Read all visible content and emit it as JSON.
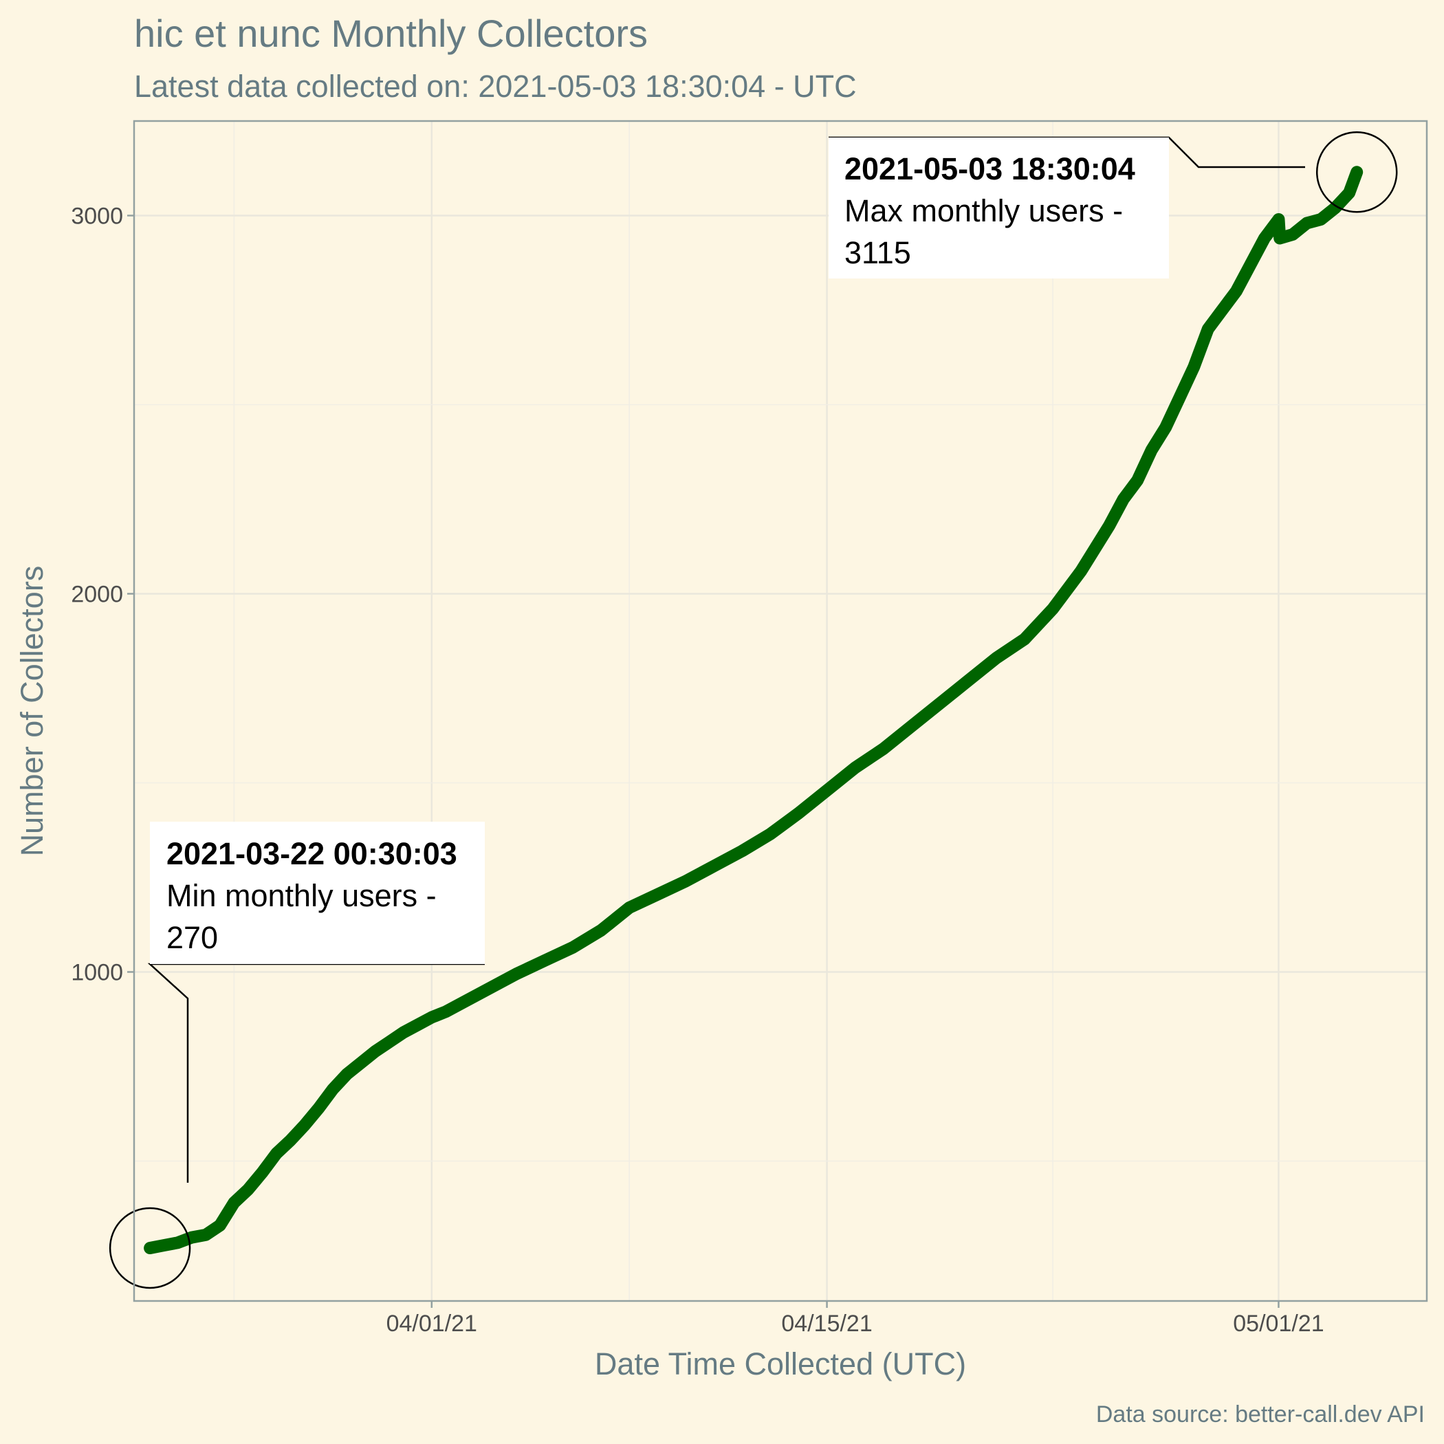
{
  "chart_data": {
    "type": "line",
    "title": "hic et nunc Monthly Collectors",
    "subtitle": "Latest data collected on: 2021-05-03 18:30:04  - UTC",
    "xlabel": "Date Time Collected (UTC)",
    "ylabel": "Number of Collectors",
    "caption": "Data source: better-call.dev API",
    "x_ticks": [
      {
        "date": "2021-04-01",
        "label": "04/01/21"
      },
      {
        "date": "2021-04-15",
        "label": "04/15/21"
      },
      {
        "date": "2021-05-01",
        "label": "05/01/21"
      }
    ],
    "y_ticks": [
      1000,
      2000,
      3000
    ],
    "xlim": [
      "2021-03-21 11:00",
      "2021-05-06 06:00"
    ],
    "ylim": [
      130,
      3250
    ],
    "grid": true,
    "colors": {
      "line": "#006400",
      "background": "#FDF6E3",
      "panel_border": "#93A1A1"
    },
    "series": [
      {
        "x": [
          "2021-03-22 00:30",
          "2021-03-22 12:00",
          "2021-03-23 00:00",
          "2021-03-23 12:00",
          "2021-03-24 00:00",
          "2021-03-24 12:00",
          "2021-03-25 00:00",
          "2021-03-25 12:00",
          "2021-03-26 00:00",
          "2021-03-26 12:00",
          "2021-03-27 00:00",
          "2021-03-27 12:00",
          "2021-03-28 00:00",
          "2021-03-28 12:00",
          "2021-03-29 00:00",
          "2021-03-29 12:00",
          "2021-03-30 00:00",
          "2021-03-30 12:00",
          "2021-03-31 00:00",
          "2021-03-31 12:00",
          "2021-04-01 00:00",
          "2021-04-01 12:00",
          "2021-04-02 00:00",
          "2021-04-03 00:00",
          "2021-04-04 00:00",
          "2021-04-05 00:00",
          "2021-04-06 00:00",
          "2021-04-07 00:00",
          "2021-04-08 00:00",
          "2021-04-09 00:00",
          "2021-04-10 00:00",
          "2021-04-11 00:00",
          "2021-04-12 00:00",
          "2021-04-13 00:00",
          "2021-04-14 00:00",
          "2021-04-15 00:00",
          "2021-04-16 00:00",
          "2021-04-17 00:00",
          "2021-04-18 00:00",
          "2021-04-19 00:00",
          "2021-04-20 00:00",
          "2021-04-21 00:00",
          "2021-04-22 00:00",
          "2021-04-23 00:00",
          "2021-04-24 00:00",
          "2021-04-25 00:00",
          "2021-04-25 12:00",
          "2021-04-26 00:00",
          "2021-04-26 12:00",
          "2021-04-27 00:00",
          "2021-04-27 12:00",
          "2021-04-28 00:00",
          "2021-04-28 12:00",
          "2021-04-29 00:00",
          "2021-04-29 12:00",
          "2021-04-30 00:00",
          "2021-04-30 12:00",
          "2021-05-01 00:00",
          "2021-05-01 01:00",
          "2021-05-01 12:00",
          "2021-05-02 00:00",
          "2021-05-02 12:00",
          "2021-05-03 00:00",
          "2021-05-03 12:00",
          "2021-05-03 18:30"
        ],
        "values": [
          270,
          277,
          284,
          298,
          305,
          330,
          390,
          425,
          470,
          520,
          555,
          595,
          640,
          690,
          730,
          760,
          790,
          815,
          840,
          860,
          880,
          895,
          915,
          955,
          995,
          1030,
          1065,
          1110,
          1170,
          1205,
          1240,
          1280,
          1320,
          1365,
          1420,
          1480,
          1540,
          1590,
          1650,
          1710,
          1770,
          1830,
          1880,
          1960,
          2060,
          2180,
          2250,
          2300,
          2380,
          2440,
          2520,
          2600,
          2700,
          2750,
          2800,
          2870,
          2940,
          2990,
          2940,
          2950,
          2980,
          2990,
          3020,
          3060,
          3115
        ]
      }
    ],
    "annotations": [
      {
        "timestamp": "2021-03-22 00:30:03",
        "text": "Min monthly users -",
        "value": "270"
      },
      {
        "timestamp": "2021-05-03 18:30:04",
        "text": "Max monthly users -",
        "value": "3115"
      }
    ]
  }
}
